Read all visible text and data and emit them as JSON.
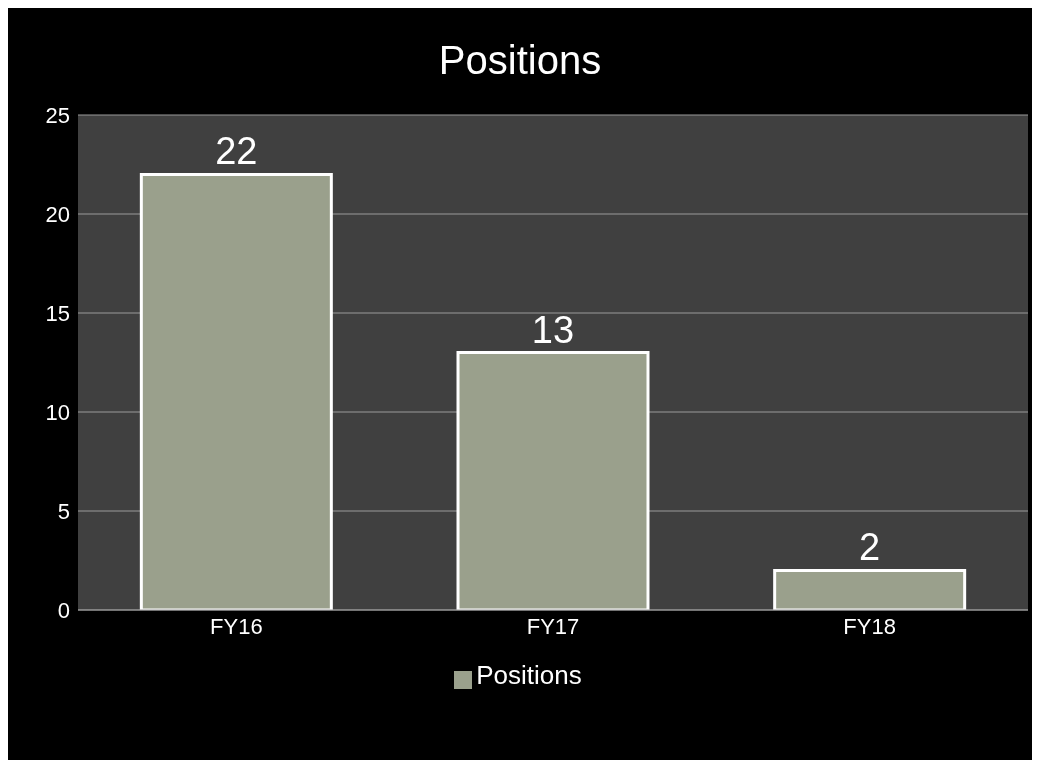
{
  "chart_data": {
    "type": "bar",
    "title": "Positions",
    "categories": [
      "FY16",
      "FY17",
      "FY18"
    ],
    "series": [
      {
        "name": "Positions",
        "color": "#9aa08c",
        "values": [
          22,
          13,
          2
        ]
      }
    ],
    "ylim": [
      0,
      25
    ],
    "yticks": [
      0,
      5,
      10,
      15,
      20,
      25
    ],
    "grid": "y",
    "legend": "bottom",
    "data_labels": true
  }
}
